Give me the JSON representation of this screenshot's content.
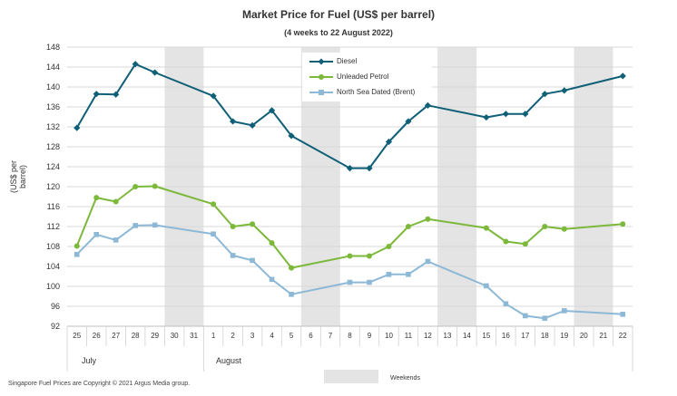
{
  "chart_data": {
    "type": "line",
    "title": "Market Price for Fuel (US$ per barrel)",
    "subtitle": "(4 weeks to 22 August 2022)",
    "ylabel": "(US$ per barrel)",
    "xlabel": "",
    "ylim": [
      92,
      148
    ],
    "yticks": [
      "92",
      "96",
      "100",
      "104",
      "108",
      "112",
      "116",
      "120",
      "124",
      "128",
      "132",
      "136",
      "140",
      "144",
      "148"
    ],
    "categories": [
      "25",
      "26",
      "27",
      "28",
      "29",
      "30",
      "31",
      "1",
      "2",
      "3",
      "4",
      "5",
      "6",
      "7",
      "8",
      "9",
      "10",
      "11",
      "12",
      "13",
      "14",
      "15",
      "16",
      "17",
      "18",
      "19",
      "20",
      "21",
      "22"
    ],
    "months": [
      {
        "label": "July",
        "start_index": 0
      },
      {
        "label": "August",
        "start_index": 7
      }
    ],
    "weekends": [
      [
        30,
        31
      ],
      [
        6,
        7
      ],
      [
        13,
        14
      ],
      [
        20,
        21
      ]
    ],
    "series": [
      {
        "name": "Diesel",
        "color": "#0f5f77",
        "marker": "diamond",
        "values": [
          131.8,
          138.6,
          138.5,
          144.6,
          142.9,
          null,
          null,
          138.2,
          133.1,
          132.3,
          135.3,
          130.2,
          null,
          null,
          123.7,
          123.7,
          129.0,
          133.1,
          136.3,
          null,
          null,
          133.9,
          134.6,
          134.6,
          138.6,
          139.3,
          null,
          null,
          142.2
        ]
      },
      {
        "name": "Unleaded Petrol",
        "color": "#7cb83a",
        "marker": "circle",
        "values": [
          108.1,
          117.8,
          117.0,
          120.0,
          120.1,
          null,
          null,
          116.5,
          112.0,
          112.5,
          108.7,
          103.7,
          null,
          null,
          106.1,
          106.1,
          108.0,
          112.0,
          113.5,
          null,
          null,
          111.7,
          109.0,
          108.5,
          112.0,
          111.5,
          null,
          null,
          112.5
        ]
      },
      {
        "name": "North Sea Dated (Brent)",
        "color": "#8db8d6",
        "marker": "square",
        "values": [
          106.4,
          110.4,
          109.3,
          112.2,
          112.3,
          null,
          null,
          110.5,
          106.2,
          105.2,
          101.4,
          98.4,
          null,
          null,
          100.8,
          100.8,
          102.4,
          102.4,
          105.0,
          null,
          null,
          100.1,
          96.5,
          94.1,
          93.6,
          95.1,
          null,
          null,
          94.4
        ]
      }
    ],
    "legend_position": "top-center",
    "grid": true,
    "weekends_label": "Weekends"
  },
  "footer": "Singapore Fuel Prices are Copyright © 2021 Argus Media group."
}
